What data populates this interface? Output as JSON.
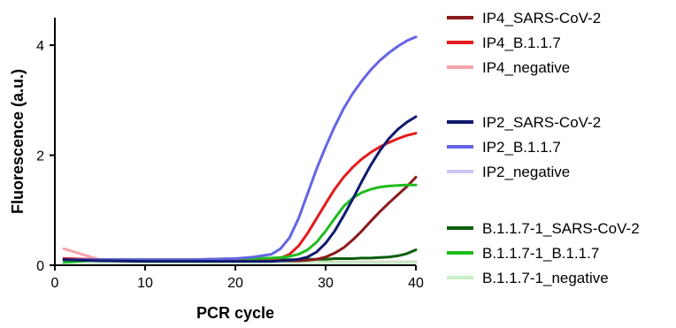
{
  "chart_data": {
    "type": "line",
    "title": "",
    "xlabel": "PCR cycle",
    "ylabel": "Fluorescence (a.u.)",
    "xlim": [
      0,
      40
    ],
    "ylim": [
      0,
      4.5
    ],
    "xticks": [
      0,
      10,
      20,
      30,
      40
    ],
    "yticks": [
      0,
      2,
      4
    ],
    "grid": false,
    "legend_position": "right",
    "x": [
      1,
      5,
      10,
      15,
      20,
      22,
      24,
      25,
      26,
      27,
      28,
      29,
      30,
      31,
      32,
      33,
      34,
      35,
      36,
      37,
      38,
      39,
      40
    ],
    "series": [
      {
        "name": "IP4_SARS-CoV-2",
        "color": "#8b1a1a",
        "values": [
          0.12,
          0.1,
          0.09,
          0.09,
          0.08,
          0.08,
          0.08,
          0.08,
          0.08,
          0.08,
          0.09,
          0.11,
          0.15,
          0.22,
          0.32,
          0.46,
          0.62,
          0.8,
          0.97,
          1.13,
          1.28,
          1.43,
          1.6
        ]
      },
      {
        "name": "IP4_B.1.1.7",
        "color": "#e41a1c",
        "values": [
          0.12,
          0.1,
          0.1,
          0.1,
          0.1,
          0.1,
          0.11,
          0.13,
          0.2,
          0.35,
          0.58,
          0.85,
          1.12,
          1.38,
          1.6,
          1.78,
          1.93,
          2.05,
          2.15,
          2.23,
          2.3,
          2.36,
          2.4
        ]
      },
      {
        "name": "IP4_negative",
        "color": "#f4a3a8",
        "values": [
          0.3,
          0.1,
          0.07,
          0.06,
          0.06,
          0.06,
          0.06,
          0.06,
          0.06,
          0.06,
          0.06,
          0.06,
          0.06,
          0.06,
          0.06,
          0.06,
          0.06,
          0.06,
          0.06,
          0.06,
          0.06,
          0.06,
          0.06
        ]
      },
      {
        "name": "IP2_SARS-CoV-2",
        "color": "#0f1a6e",
        "values": [
          0.1,
          0.08,
          0.07,
          0.07,
          0.07,
          0.07,
          0.07,
          0.08,
          0.09,
          0.11,
          0.15,
          0.24,
          0.4,
          0.62,
          0.9,
          1.2,
          1.52,
          1.82,
          2.08,
          2.3,
          2.47,
          2.6,
          2.7
        ]
      },
      {
        "name": "IP2_B.1.1.7",
        "color": "#6464e6",
        "values": [
          0.1,
          0.1,
          0.1,
          0.1,
          0.12,
          0.15,
          0.2,
          0.3,
          0.5,
          0.85,
          1.3,
          1.75,
          2.15,
          2.52,
          2.85,
          3.12,
          3.35,
          3.55,
          3.72,
          3.86,
          3.98,
          4.08,
          4.15
        ]
      },
      {
        "name": "IP2_negative",
        "color": "#c9c6f5",
        "values": [
          0.05,
          0.05,
          0.05,
          0.05,
          0.05,
          0.05,
          0.05,
          0.05,
          0.05,
          0.05,
          0.05,
          0.05,
          0.05,
          0.05,
          0.05,
          0.05,
          0.05,
          0.05,
          0.05,
          0.05,
          0.05,
          0.05,
          0.05
        ]
      },
      {
        "name": "B.1.1.7-1_SARS-CoV-2",
        "color": "#0b5e0b",
        "values": [
          0.1,
          0.1,
          0.1,
          0.1,
          0.1,
          0.1,
          0.1,
          0.1,
          0.1,
          0.1,
          0.11,
          0.11,
          0.11,
          0.12,
          0.12,
          0.12,
          0.13,
          0.13,
          0.14,
          0.15,
          0.17,
          0.21,
          0.28
        ]
      },
      {
        "name": "B.1.1.7-1_B.1.1.7",
        "color": "#1ebd1e",
        "values": [
          0.05,
          0.1,
          0.1,
          0.1,
          0.12,
          0.12,
          0.13,
          0.14,
          0.16,
          0.2,
          0.28,
          0.42,
          0.62,
          0.85,
          1.07,
          1.22,
          1.32,
          1.38,
          1.42,
          1.44,
          1.45,
          1.46,
          1.46
        ]
      },
      {
        "name": "B.1.1.7-1_negative",
        "color": "#c6efc6",
        "values": [
          0.05,
          0.05,
          0.05,
          0.05,
          0.05,
          0.05,
          0.05,
          0.05,
          0.05,
          0.05,
          0.05,
          0.05,
          0.05,
          0.05,
          0.05,
          0.05,
          0.05,
          0.05,
          0.05,
          0.05,
          0.05,
          0.05,
          0.05
        ]
      }
    ]
  }
}
